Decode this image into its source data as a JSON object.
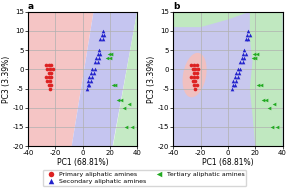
{
  "chart_data": [
    {
      "type": "scatter",
      "title": "a",
      "x_label": "PC1 (68.81%)",
      "y_label": "PC3 (3.39%)",
      "xlim": [
        -40,
        40
      ],
      "ylim": [
        -20,
        15
      ],
      "xticks": [
        -40,
        -20,
        0,
        20,
        40
      ],
      "yticks": [
        -20,
        -15,
        -10,
        -5,
        0,
        5,
        10,
        15
      ],
      "grid": true,
      "regions": [
        {
          "color": "#f5c5c5",
          "polygon": [
            [
              -40,
              -20
            ],
            [
              -8,
              -20
            ],
            [
              8,
              15
            ],
            [
              -40,
              15
            ]
          ]
        },
        {
          "color": "#c5c5f0",
          "polygon": [
            [
              -8,
              -20
            ],
            [
              22,
              -20
            ],
            [
              40,
              15
            ],
            [
              8,
              15
            ]
          ]
        },
        {
          "color": "#c5eac5",
          "polygon": [
            [
              22,
              -20
            ],
            [
              40,
              -20
            ],
            [
              40,
              15
            ]
          ]
        }
      ],
      "series": [
        {
          "color": "#dd2222",
          "marker": "circle",
          "values": [
            [
              -27,
              1
            ],
            [
              -25,
              1
            ],
            [
              -23,
              1
            ],
            [
              -26,
              0
            ],
            [
              -24,
              0
            ],
            [
              -22,
              0
            ],
            [
              -25,
              -1
            ],
            [
              -23,
              -1
            ],
            [
              -27,
              -2
            ],
            [
              -25,
              -2
            ],
            [
              -23,
              -2
            ],
            [
              -26,
              -3
            ],
            [
              -24,
              -3
            ],
            [
              -25,
              -4
            ],
            [
              -23,
              -4
            ],
            [
              -24,
              -5
            ]
          ]
        },
        {
          "color": "#2222cc",
          "marker": "triangle_up",
          "values": [
            [
              3,
              -5
            ],
            [
              4,
              -4
            ],
            [
              5,
              -4
            ],
            [
              4,
              -3
            ],
            [
              6,
              -3
            ],
            [
              5,
              -2
            ],
            [
              7,
              -2
            ],
            [
              6,
              -1
            ],
            [
              8,
              -1
            ],
            [
              7,
              0
            ],
            [
              9,
              0
            ],
            [
              9,
              2
            ],
            [
              11,
              2
            ],
            [
              10,
              3
            ],
            [
              12,
              3
            ],
            [
              11,
              4
            ],
            [
              13,
              4
            ],
            [
              12,
              5
            ],
            [
              13,
              8
            ],
            [
              15,
              8
            ],
            [
              14,
              9
            ],
            [
              16,
              9
            ],
            [
              15,
              10
            ]
          ]
        },
        {
          "color": "#22aa22",
          "marker": "triangle_left",
          "values": [
            [
              18,
              3
            ],
            [
              20,
              3
            ],
            [
              19,
              4
            ],
            [
              21,
              4
            ],
            [
              22,
              -4
            ],
            [
              24,
              -4
            ],
            [
              26,
              -8
            ],
            [
              28,
              -8
            ],
            [
              30,
              -10
            ],
            [
              32,
              -15
            ],
            [
              34,
              -9
            ],
            [
              36,
              -15
            ]
          ]
        }
      ]
    },
    {
      "type": "scatter",
      "title": "b",
      "x_label": "PC1 (68.81%)",
      "y_label": "PC3 (3.39%)",
      "xlim": [
        -40,
        40
      ],
      "ylim": [
        -20,
        15
      ],
      "xticks": [
        -40,
        -20,
        0,
        20,
        40
      ],
      "yticks": [
        -20,
        -15,
        -10,
        -5,
        0,
        5,
        10,
        15
      ],
      "grid": true,
      "regions": [
        {
          "color": "#c8c8ee",
          "polygon": [
            [
              -40,
              -20
            ],
            [
              40,
              -20
            ],
            [
              40,
              15
            ],
            [
              -40,
              15
            ]
          ]
        },
        {
          "color": "#c0e8c0",
          "polygon": [
            [
              16,
              15
            ],
            [
              40,
              15
            ],
            [
              40,
              -20
            ],
            [
              20,
              -20
            ],
            [
              18,
              -12
            ],
            [
              16,
              -5
            ],
            [
              18,
              2
            ],
            [
              16,
              8
            ]
          ]
        },
        {
          "color": "#c0e8c0",
          "polygon": [
            [
              -40,
              15
            ],
            [
              -40,
              11
            ],
            [
              -20,
              11
            ],
            [
              0,
              13
            ],
            [
              16,
              15
            ]
          ]
        },
        {
          "color": "#f0c0c0",
          "ellipse": {
            "center": [
              -24.5,
              -1.5
            ],
            "width": 18,
            "height": 11,
            "angle": 15
          }
        }
      ],
      "series": [
        {
          "name": "Primary aliphatic amines",
          "color": "#dd2222",
          "marker": "circle",
          "values": [
            [
              -27,
              1
            ],
            [
              -25,
              1
            ],
            [
              -23,
              1
            ],
            [
              -26,
              0
            ],
            [
              -24,
              0
            ],
            [
              -22,
              0
            ],
            [
              -25,
              -1
            ],
            [
              -23,
              -1
            ],
            [
              -27,
              -2
            ],
            [
              -25,
              -2
            ],
            [
              -23,
              -2
            ],
            [
              -26,
              -3
            ],
            [
              -24,
              -3
            ],
            [
              -25,
              -4
            ],
            [
              -23,
              -4
            ],
            [
              -24,
              -5
            ]
          ]
        },
        {
          "name": "Secondary aliphatic amines",
          "color": "#2222cc",
          "marker": "triangle_up",
          "values": [
            [
              3,
              -5
            ],
            [
              4,
              -4
            ],
            [
              5,
              -4
            ],
            [
              4,
              -3
            ],
            [
              6,
              -3
            ],
            [
              5,
              -2
            ],
            [
              7,
              -2
            ],
            [
              6,
              -1
            ],
            [
              8,
              -1
            ],
            [
              7,
              0
            ],
            [
              9,
              0
            ],
            [
              9,
              2
            ],
            [
              11,
              2
            ],
            [
              10,
              3
            ],
            [
              12,
              3
            ],
            [
              11,
              4
            ],
            [
              13,
              4
            ],
            [
              12,
              5
            ],
            [
              13,
              8
            ],
            [
              15,
              8
            ],
            [
              14,
              9
            ],
            [
              16,
              9
            ],
            [
              15,
              10
            ]
          ]
        },
        {
          "name": "Tertiary aliphatic amines",
          "color": "#22aa22",
          "marker": "triangle_left",
          "values": [
            [
              18,
              3
            ],
            [
              20,
              3
            ],
            [
              19,
              4
            ],
            [
              21,
              4
            ],
            [
              22,
              -4
            ],
            [
              24,
              -4
            ],
            [
              26,
              -8
            ],
            [
              28,
              -8
            ],
            [
              30,
              -10
            ],
            [
              32,
              -15
            ],
            [
              34,
              -9
            ],
            [
              36,
              -15
            ]
          ]
        }
      ]
    }
  ]
}
